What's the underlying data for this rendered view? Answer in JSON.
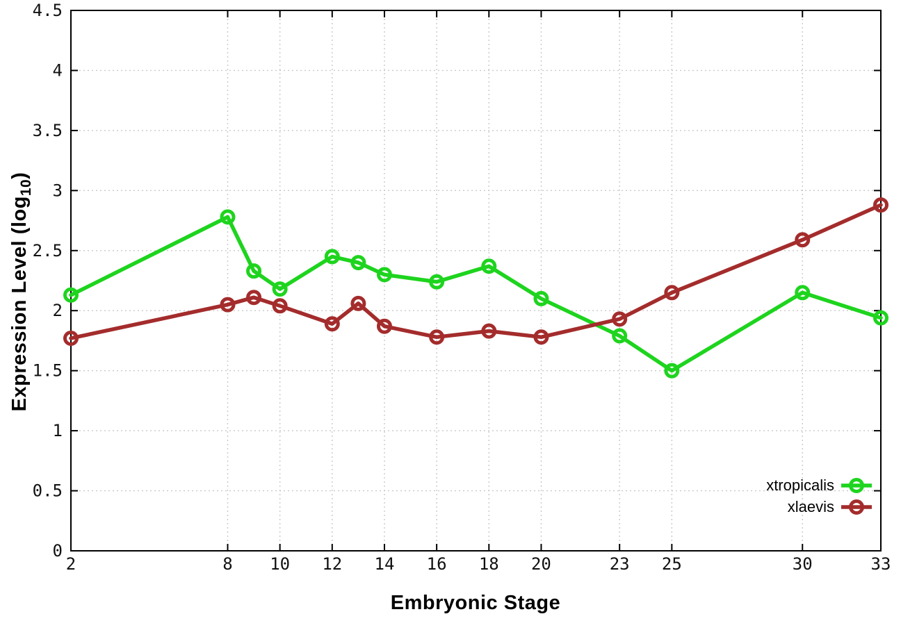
{
  "chart_data": {
    "type": "line",
    "title": "",
    "xlabel": "Embryonic Stage",
    "ylabel": "Expression Level (log10)",
    "ylabel_parts": {
      "main": "Expression Level (log",
      "sub": "10",
      "end": ")"
    },
    "x": [
      2,
      8,
      9,
      10,
      12,
      13,
      14,
      16,
      18,
      20,
      23,
      25,
      30,
      33
    ],
    "series": [
      {
        "name": "xtropicalis",
        "color": "#1ed41e",
        "marker": "open-circle",
        "values": [
          2.13,
          2.78,
          2.33,
          2.18,
          2.45,
          2.4,
          2.3,
          2.24,
          2.37,
          2.1,
          1.79,
          1.5,
          2.15,
          1.94
        ]
      },
      {
        "name": "xlaevis",
        "color": "#a42c2c",
        "marker": "open-circle",
        "values": [
          1.77,
          2.05,
          2.11,
          2.04,
          1.89,
          2.06,
          1.87,
          1.78,
          1.83,
          1.78,
          1.93,
          2.15,
          2.59,
          2.88
        ]
      }
    ],
    "xticks": [
      2,
      8,
      10,
      12,
      14,
      16,
      18,
      20,
      23,
      25,
      30,
      33
    ],
    "yticks": [
      0,
      0.5,
      1,
      1.5,
      2,
      2.5,
      3,
      3.5,
      4,
      4.5
    ],
    "xlim": [
      2,
      33
    ],
    "ylim": [
      0,
      4.5
    ],
    "grid": true,
    "legend_position": "inside-bottom-right",
    "colors": {
      "grid": "#c9c9c9",
      "border": "#000000",
      "tick_label": "#111111"
    }
  }
}
